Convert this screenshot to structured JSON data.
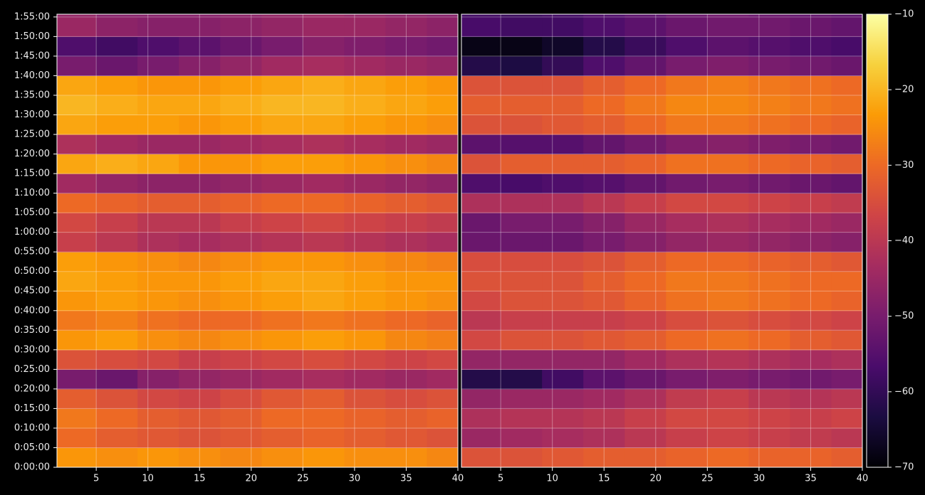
{
  "chart_data": {
    "type": "heatmap",
    "ylim": [
      0,
      115.7
    ],
    "yticks": [
      {
        "value": 0,
        "label": "0:00:00"
      },
      {
        "value": 5,
        "label": "0:05:00"
      },
      {
        "value": 10,
        "label": "0:10:00"
      },
      {
        "value": 15,
        "label": "0:15:00"
      },
      {
        "value": 20,
        "label": "0:20:00"
      },
      {
        "value": 25,
        "label": "0:25:00"
      },
      {
        "value": 30,
        "label": "0:30:00"
      },
      {
        "value": 35,
        "label": "0:35:00"
      },
      {
        "value": 40,
        "label": "0:40:00"
      },
      {
        "value": 45,
        "label": "0:45:00"
      },
      {
        "value": 50,
        "label": "0:50:00"
      },
      {
        "value": 55,
        "label": "0:55:00"
      },
      {
        "value": 60,
        "label": "1:00:00"
      },
      {
        "value": 65,
        "label": "1:05:00"
      },
      {
        "value": 70,
        "label": "1:10:00"
      },
      {
        "value": 75,
        "label": "1:15:00"
      },
      {
        "value": 80,
        "label": "1:20:00"
      },
      {
        "value": 85,
        "label": "1:25:00"
      },
      {
        "value": 90,
        "label": "1:30:00"
      },
      {
        "value": 95,
        "label": "1:35:00"
      },
      {
        "value": 100,
        "label": "1:40:00"
      },
      {
        "value": 105,
        "label": "1:45:00"
      },
      {
        "value": 110,
        "label": "1:50:00"
      },
      {
        "value": 115,
        "label": "1:55:00"
      }
    ],
    "ybins": [
      0,
      5,
      10,
      15,
      20,
      25,
      30,
      35,
      40,
      45,
      50,
      55,
      60,
      65,
      70,
      75,
      80,
      85,
      90,
      95,
      100,
      105,
      110,
      115,
      115.7
    ],
    "grid": true,
    "colorbar": {
      "clim": [
        -70,
        -10
      ],
      "ticks": [
        {
          "value": -70,
          "label": "−70"
        },
        {
          "value": -60,
          "label": "−60"
        },
        {
          "value": -50,
          "label": "−50"
        },
        {
          "value": -40,
          "label": "−40"
        },
        {
          "value": -30,
          "label": "−30"
        },
        {
          "value": -20,
          "label": "−20"
        },
        {
          "value": -10,
          "label": "−10"
        }
      ],
      "colormap": [
        "#000004",
        "#1b0c41",
        "#4a0c6b",
        "#781c6d",
        "#a52c60",
        "#cf4446",
        "#ed6925",
        "#fb9b06",
        "#f7d13d",
        "#fcffa4"
      ]
    },
    "panels": [
      {
        "xlim": [
          1.2,
          40
        ],
        "xticks": [
          5,
          10,
          15,
          20,
          25,
          30,
          35,
          40
        ],
        "xbins": [
          1.2,
          5,
          9,
          13,
          17,
          21,
          25,
          29,
          33,
          37,
          40
        ],
        "values": [
          [
            -24,
            -25,
            -24,
            -25,
            -26,
            -25,
            -24,
            -25,
            -25,
            -26
          ],
          [
            -30,
            -32,
            -33,
            -34,
            -33,
            -32,
            -31,
            -32,
            -33,
            -34
          ],
          [
            -28,
            -30,
            -32,
            -33,
            -32,
            -30,
            -30,
            -31,
            -32,
            -31
          ],
          [
            -32,
            -34,
            -36,
            -37,
            -35,
            -33,
            -32,
            -34,
            -35,
            -34
          ],
          [
            -50,
            -52,
            -48,
            -46,
            -45,
            -44,
            -43,
            -44,
            -45,
            -44
          ],
          [
            -34,
            -35,
            -36,
            -38,
            -37,
            -36,
            -35,
            -36,
            -37,
            -36
          ],
          [
            -24,
            -23,
            -25,
            -26,
            -25,
            -24,
            -23,
            -24,
            -26,
            -27
          ],
          [
            -28,
            -27,
            -29,
            -30,
            -30,
            -29,
            -28,
            -29,
            -30,
            -31
          ],
          [
            -24,
            -23,
            -24,
            -25,
            -24,
            -23,
            -22,
            -23,
            -24,
            -25
          ],
          [
            -22,
            -23,
            -24,
            -24,
            -23,
            -22,
            -22,
            -23,
            -24,
            -24
          ],
          [
            -23,
            -24,
            -25,
            -26,
            -25,
            -24,
            -24,
            -25,
            -26,
            -27
          ],
          [
            -38,
            -40,
            -42,
            -43,
            -42,
            -41,
            -40,
            -41,
            -42,
            -43
          ],
          [
            -36,
            -38,
            -40,
            -40,
            -38,
            -37,
            -36,
            -37,
            -38,
            -39
          ],
          [
            -30,
            -31,
            -32,
            -32,
            -31,
            -30,
            -30,
            -31,
            -32,
            -33
          ],
          [
            -44,
            -46,
            -47,
            -47,
            -46,
            -45,
            -44,
            -45,
            -46,
            -47
          ],
          [
            -22,
            -21,
            -22,
            -24,
            -24,
            -23,
            -23,
            -24,
            -25,
            -26
          ],
          [
            -42,
            -44,
            -45,
            -45,
            -44,
            -43,
            -42,
            -43,
            -44,
            -45
          ],
          [
            -22,
            -23,
            -23,
            -24,
            -23,
            -22,
            -22,
            -23,
            -24,
            -25
          ],
          [
            -20,
            -21,
            -22,
            -22,
            -21,
            -20,
            -20,
            -21,
            -22,
            -23
          ],
          [
            -22,
            -23,
            -24,
            -24,
            -23,
            -22,
            -21,
            -22,
            -23,
            -24
          ],
          [
            -50,
            -52,
            -50,
            -48,
            -46,
            -44,
            -43,
            -44,
            -45,
            -46
          ],
          [
            -56,
            -58,
            -56,
            -54,
            -52,
            -50,
            -48,
            -49,
            -50,
            -51
          ],
          [
            -45,
            -47,
            -48,
            -48,
            -47,
            -46,
            -45,
            -45,
            -46,
            -47
          ],
          [
            -46,
            -48,
            -48,
            -48,
            -47,
            -46,
            -45,
            -46,
            -47,
            -48
          ]
        ]
      },
      {
        "xlim": [
          1.2,
          40
        ],
        "xticks": [
          5,
          10,
          15,
          20,
          25,
          30,
          35,
          40
        ],
        "xbins": [
          1.2,
          5,
          9,
          13,
          17,
          21,
          25,
          29,
          33,
          37,
          40
        ],
        "values": [
          [
            -34,
            -34,
            -33,
            -32,
            -32,
            -31,
            -30,
            -31,
            -31,
            -32
          ],
          [
            -45,
            -44,
            -43,
            -42,
            -40,
            -38,
            -37,
            -38,
            -39,
            -40
          ],
          [
            -42,
            -41,
            -41,
            -40,
            -38,
            -36,
            -36,
            -37,
            -38,
            -37
          ],
          [
            -46,
            -45,
            -45,
            -44,
            -42,
            -39,
            -38,
            -40,
            -41,
            -40
          ],
          [
            -62,
            -62,
            -58,
            -54,
            -52,
            -50,
            -49,
            -50,
            -51,
            -50
          ],
          [
            -46,
            -46,
            -46,
            -46,
            -44,
            -42,
            -41,
            -42,
            -43,
            -42
          ],
          [
            -36,
            -34,
            -34,
            -33,
            -32,
            -30,
            -29,
            -30,
            -32,
            -33
          ],
          [
            -40,
            -38,
            -38,
            -38,
            -37,
            -35,
            -34,
            -35,
            -36,
            -37
          ],
          [
            -36,
            -34,
            -34,
            -33,
            -31,
            -29,
            -28,
            -29,
            -30,
            -31
          ],
          [
            -34,
            -34,
            -34,
            -32,
            -30,
            -28,
            -28,
            -29,
            -30,
            -30
          ],
          [
            -35,
            -35,
            -35,
            -34,
            -32,
            -30,
            -30,
            -31,
            -32,
            -33
          ],
          [
            -52,
            -52,
            -52,
            -50,
            -48,
            -46,
            -45,
            -46,
            -47,
            -48
          ],
          [
            -52,
            -50,
            -50,
            -48,
            -45,
            -43,
            -42,
            -43,
            -44,
            -45
          ],
          [
            -42,
            -42,
            -42,
            -40,
            -38,
            -36,
            -36,
            -37,
            -38,
            -39
          ],
          [
            -56,
            -57,
            -56,
            -55,
            -53,
            -51,
            -50,
            -51,
            -52,
            -53
          ],
          [
            -34,
            -32,
            -32,
            -32,
            -31,
            -29,
            -29,
            -30,
            -31,
            -32
          ],
          [
            -54,
            -55,
            -55,
            -53,
            -51,
            -49,
            -48,
            -49,
            -50,
            -51
          ],
          [
            -34,
            -34,
            -33,
            -32,
            -30,
            -28,
            -28,
            -29,
            -30,
            -31
          ],
          [
            -32,
            -32,
            -32,
            -30,
            -28,
            -26,
            -26,
            -27,
            -28,
            -29
          ],
          [
            -34,
            -34,
            -34,
            -32,
            -30,
            -28,
            -27,
            -28,
            -29,
            -30
          ],
          [
            -62,
            -63,
            -60,
            -56,
            -53,
            -50,
            -49,
            -50,
            -51,
            -52
          ],
          [
            -68,
            -68,
            -66,
            -62,
            -59,
            -56,
            -54,
            -55,
            -56,
            -57
          ],
          [
            -57,
            -58,
            -58,
            -56,
            -54,
            -52,
            -51,
            -51,
            -52,
            -53
          ],
          [
            -58,
            -59,
            -58,
            -56,
            -54,
            -52,
            -51,
            -52,
            -53,
            -54
          ]
        ]
      }
    ]
  }
}
